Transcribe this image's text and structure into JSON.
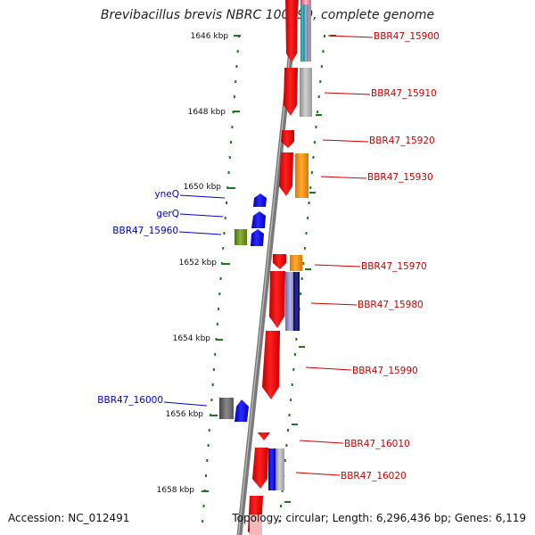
{
  "title": "Brevibacillus brevis NBRC 100599, complete genome",
  "footer": {
    "accession": "Accession: NC_012491",
    "topology": "Topology: circular; Length: 6,296,436 bp; Genes: 6,119"
  },
  "colors": {
    "axis": "#7a7a7a",
    "tick": "#1a7a1a",
    "gene_red": "#ee0000",
    "gene_blue": "#0000ee",
    "label_red": "#cc0000",
    "label_blue": "#0000cc"
  },
  "ruler_labels": [
    "1646 kbp",
    "1648 kbp",
    "1650 kbp",
    "1652 kbp",
    "1654 kbp",
    "1656 kbp",
    "1658 kbp"
  ],
  "right_genes": [
    "BBR47_15900",
    "BBR47_15910",
    "BBR47_15920",
    "BBR47_15930",
    "BBR47_15970",
    "BBR47_15980",
    "BBR47_15990",
    "BBR47_16010",
    "BBR47_16020"
  ],
  "left_genes": [
    "yneQ",
    "gerQ",
    "BBR47_15960",
    "BBR47_16000"
  ]
}
